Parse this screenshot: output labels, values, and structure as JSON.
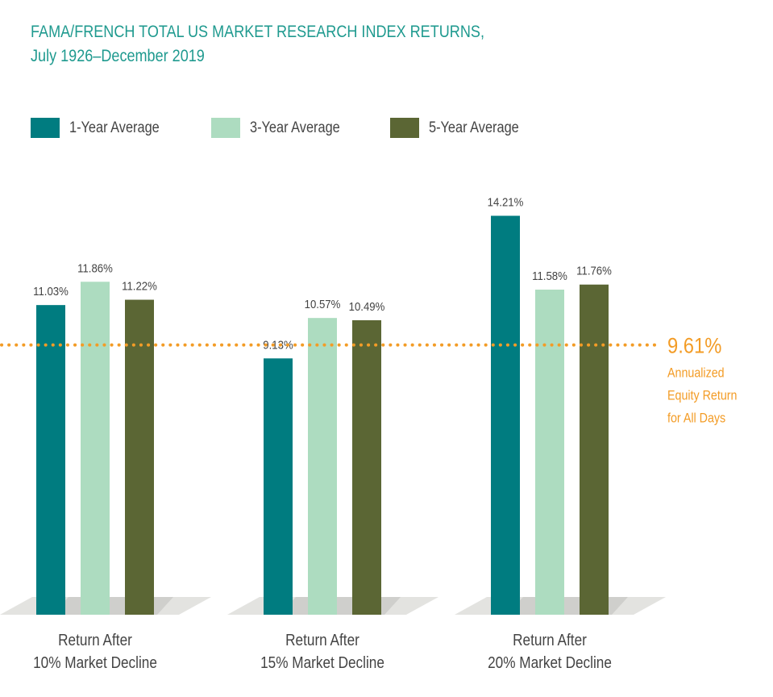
{
  "chart_data": {
    "type": "bar",
    "title": "FAMA/FRENCH TOTAL US MARKET RESEARCH INDEX RETURNS,",
    "subtitle": "July 1926–December 2019",
    "categories": [
      [
        "Return After",
        "10% Market Decline"
      ],
      [
        "Return After",
        "15% Market Decline"
      ],
      [
        "Return After",
        "20% Market Decline"
      ]
    ],
    "series": [
      {
        "name": "1-Year Average",
        "color": "#007c80",
        "values": [
          11.03,
          9.13,
          14.21
        ],
        "labels": [
          "11.03%",
          "9.13%",
          "14.21%"
        ]
      },
      {
        "name": "3-Year Average",
        "color": "#addcc0",
        "values": [
          11.86,
          10.57,
          11.58
        ],
        "labels": [
          "11.86%",
          "10.57%",
          "11.58%"
        ]
      },
      {
        "name": "5-Year Average",
        "color": "#5b6634",
        "values": [
          11.22,
          10.49,
          11.76
        ],
        "labels": [
          "11.22%",
          "10.49%",
          "11.76%"
        ]
      }
    ],
    "reference_line": {
      "value": 9.61,
      "label": "9.61%",
      "note": [
        "Annualized",
        "Equity Return",
        "for All Days"
      ],
      "color": "#f39c26"
    },
    "ylim": [
      0,
      15
    ],
    "legend": "top-left",
    "grid": false,
    "xlabel": "",
    "ylabel": ""
  }
}
